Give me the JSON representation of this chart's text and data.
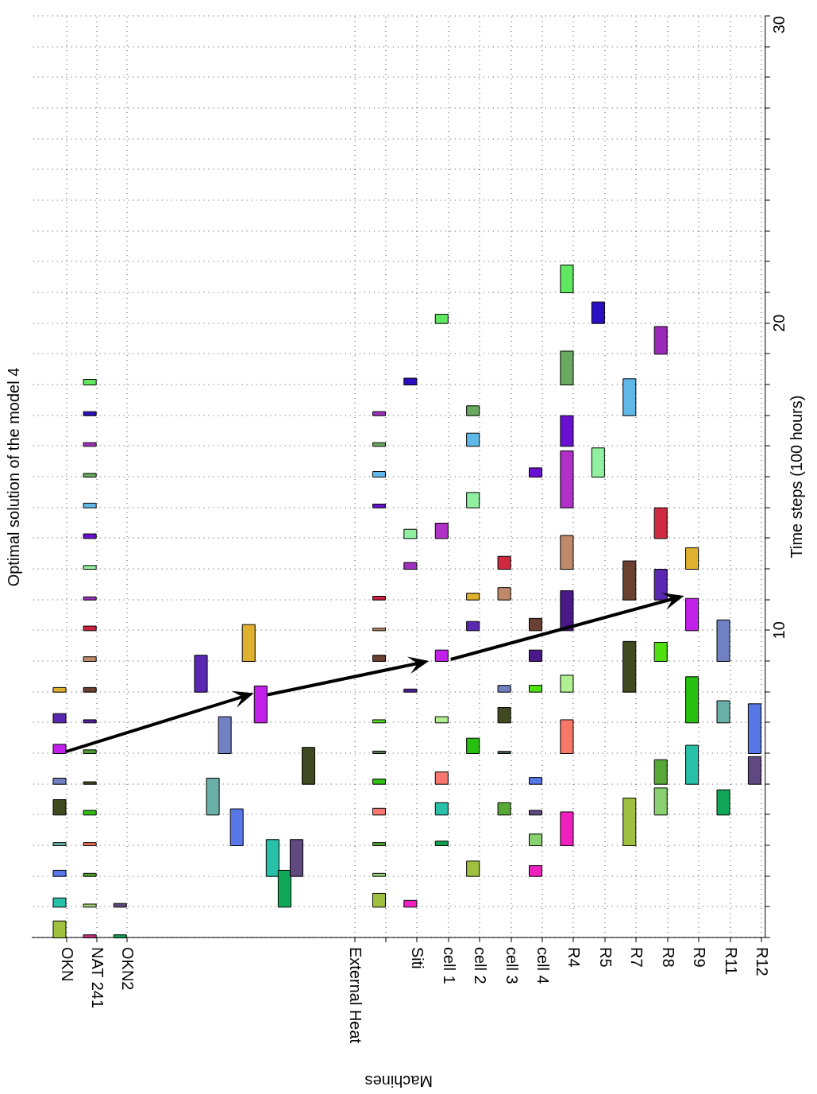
{
  "chart_data": [
    {
      "type": "bar",
      "title": "Optimal solution of the model 4",
      "categories": [
        "OKN",
        "NAT 241",
        "OKN2"
      ],
      "ylim": [
        0,
        30
      ],
      "grid": true,
      "tick_labels": "x",
      "series": [
        {
          "base": [
            0,
            0,
            0
          ],
          "values": [
            0.55,
            0.1,
            0.1
          ],
          "colors": [
            "#a0c040",
            "#c0307a",
            "#10a050"
          ]
        },
        {
          "base": [
            1,
            1,
            1
          ],
          "values": [
            0.3,
            0.1,
            0.12
          ],
          "colors": [
            "#28c0a8",
            "#a0d070",
            "#604880"
          ]
        },
        {
          "base": [
            2,
            2,
            null
          ],
          "values": [
            0.2,
            0.1,
            null
          ],
          "colors": [
            "#5878e8",
            "#50a030",
            null
          ]
        },
        {
          "base": [
            3,
            3,
            null
          ],
          "values": [
            0.1,
            0.1,
            null
          ],
          "colors": [
            "#6ab0a8",
            "#f07060",
            null
          ]
        },
        {
          "base": [
            4,
            4,
            null
          ],
          "values": [
            0.5,
            0.15,
            null
          ],
          "colors": [
            "#404a20",
            "#30c010",
            null
          ]
        },
        {
          "base": [
            5,
            5,
            null
          ],
          "values": [
            0.2,
            0.08,
            null
          ],
          "colors": [
            "#7080c0",
            "#405020",
            null
          ]
        },
        {
          "base": [
            6,
            6,
            null
          ],
          "values": [
            0.3,
            0.12,
            null
          ],
          "colors": [
            "#c020e8",
            "#50a030",
            null
          ]
        },
        {
          "base": [
            7,
            7,
            null
          ],
          "values": [
            0.3,
            0.1,
            null
          ],
          "colors": [
            "#5a28b0",
            "#5020a0",
            null
          ]
        },
        {
          "base": [
            8,
            8,
            null
          ],
          "values": [
            0.15,
            0.15,
            null
          ],
          "colors": [
            "#e0b030",
            "#6a4030",
            null
          ]
        },
        {
          "base": [
            null,
            9,
            null
          ],
          "values": [
            null,
            0.15,
            null
          ],
          "colors": [
            null,
            "#c08a6a",
            null
          ]
        },
        {
          "base": [
            null,
            10,
            null
          ],
          "values": [
            null,
            0.15,
            null
          ],
          "colors": [
            null,
            "#d02040",
            null
          ]
        },
        {
          "base": [
            null,
            11,
            null
          ],
          "values": [
            null,
            0.1,
            null
          ],
          "colors": [
            null,
            "#a030c0",
            null
          ]
        },
        {
          "base": [
            null,
            12,
            null
          ],
          "values": [
            null,
            0.12,
            null
          ],
          "colors": [
            null,
            "#90f0a0",
            null
          ]
        },
        {
          "base": [
            null,
            13,
            null
          ],
          "values": [
            null,
            0.15,
            null
          ],
          "colors": [
            null,
            "#6a10d0",
            null
          ]
        },
        {
          "base": [
            null,
            14,
            null
          ],
          "values": [
            null,
            0.15,
            null
          ],
          "colors": [
            null,
            "#60b8e8",
            null
          ]
        },
        {
          "base": [
            null,
            15,
            null
          ],
          "values": [
            null,
            0.12,
            null
          ],
          "colors": [
            null,
            "#6aaa60",
            null
          ]
        },
        {
          "base": [
            null,
            16,
            null
          ],
          "values": [
            null,
            0.12,
            null
          ],
          "colors": [
            null,
            "#a030c0",
            null
          ]
        },
        {
          "base": [
            null,
            17,
            null
          ],
          "values": [
            null,
            0.13,
            null
          ],
          "colors": [
            null,
            "#2a10c0",
            null
          ]
        },
        {
          "base": [
            null,
            18,
            null
          ],
          "values": [
            null,
            0.18,
            null
          ],
          "colors": [
            null,
            "#60e860",
            null
          ]
        }
      ]
    },
    {
      "type": "bar",
      "categories": [
        null,
        null,
        null,
        null,
        null,
        null,
        null,
        null,
        null,
        null
      ],
      "ylim": [
        0,
        30
      ],
      "grid": "y",
      "tick_labels": false,
      "base": [
        8,
        4,
        6,
        3,
        9,
        7,
        2,
        1,
        2,
        5
      ],
      "values": [
        1.2,
        1.2,
        1.2,
        1.2,
        1.2,
        1.2,
        1.2,
        1.2,
        1.2,
        1.2
      ],
      "colors": [
        "#5a28b0",
        "#6ab0a8",
        "#7080c0",
        "#5878e8",
        "#e0b030",
        "#c020e8",
        "#28c0a8",
        "#10a858",
        "#604880",
        "#404a20"
      ]
    },
    {
      "type": "bar",
      "categories": [
        "External Heat",
        null,
        "Siti",
        "cell 1",
        "cell 2",
        "cell 3",
        "cell 4",
        "R4",
        "R5",
        "R7",
        "R8",
        "R9",
        "R11",
        "R12"
      ],
      "xlabel": "Machines",
      "ylabel": "Time steps (100 hours)",
      "ylim": [
        0,
        30
      ],
      "grid": true,
      "yticks": [
        {
          "value": 0,
          "label": null
        },
        {
          "value": 1,
          "label": null
        },
        {
          "value": 2,
          "label": null
        },
        {
          "value": 3,
          "label": null
        },
        {
          "value": 4,
          "label": null
        },
        {
          "value": 5,
          "label": null
        },
        {
          "value": 6,
          "label": null
        },
        {
          "value": 7,
          "label": null
        },
        {
          "value": 8,
          "label": null
        },
        {
          "value": 9,
          "label": null
        },
        10,
        {
          "value": 11,
          "label": null
        },
        {
          "value": 12,
          "label": null
        },
        {
          "value": 13,
          "label": null
        },
        {
          "value": 14,
          "label": null
        },
        {
          "value": 15,
          "label": null
        },
        {
          "value": 16,
          "label": null
        },
        {
          "value": 17,
          "label": null
        },
        {
          "value": 18,
          "label": null
        },
        {
          "value": 19,
          "label": null
        },
        20,
        {
          "value": 21,
          "label": null
        },
        {
          "value": 22,
          "label": null
        },
        {
          "value": 23,
          "label": null
        },
        {
          "value": 24,
          "label": null
        },
        {
          "value": 25,
          "label": null
        },
        {
          "value": 26,
          "label": null
        },
        {
          "value": 27,
          "label": null
        },
        {
          "value": 28,
          "label": null
        },
        {
          "value": 29,
          "label": null
        },
        30
      ],
      "series": [
        {
          "base": [
            null,
            1,
            1,
            3,
            2,
            4,
            2,
            3,
            15,
            3,
            4,
            5,
            4,
            5
          ],
          "values": [
            null,
            0.45,
            0.22,
            0.15,
            0.5,
            0.4,
            0.35,
            1.1,
            0.95,
            1.55,
            0.88,
            1.27,
            0.82,
            0.9
          ],
          "colors": [
            null,
            "#a0c040",
            "#f020c0",
            "#10a050",
            "#a0c040",
            "#58a838",
            "#f020c0",
            "#f020c0",
            "#90f0a0",
            "#a0c040",
            "#88d070",
            "#28c0a8",
            "#10a858",
            "#604880"
          ]
        },
        {
          "base": [
            null,
            2,
            8,
            4,
            6,
            6,
            3,
            6,
            20,
            8,
            5,
            7,
            7,
            6
          ],
          "values": [
            null,
            0.1,
            0.1,
            0.4,
            0.5,
            0.07,
            0.38,
            1.1,
            0.7,
            1.65,
            0.8,
            1.5,
            0.72,
            1.62
          ],
          "colors": [
            null,
            "#90d070",
            "#5020a0",
            "#28c0a8",
            "#28c010",
            "#406060",
            "#88d070",
            "#f87868",
            "#2a10c0",
            "#404a20",
            "#58a838",
            "#28c010",
            "#6ab0a8",
            "#5878e8"
          ]
        },
        {
          "base": [
            null,
            3,
            12,
            5,
            10,
            7,
            4,
            8,
            null,
            11,
            9,
            10,
            9,
            null
          ],
          "values": [
            null,
            0.1,
            0.22,
            0.4,
            0.3,
            0.5,
            0.15,
            0.55,
            null,
            1.27,
            0.62,
            1.05,
            1.35,
            null
          ],
          "colors": [
            null,
            "#50a030",
            "#a030c0",
            "#f87870",
            "#5a28b0",
            "#404a20",
            "#604880",
            "#b0f090",
            null,
            "#6a4030",
            "#50e010",
            "#c020e8",
            "#7080c0",
            null
          ]
        },
        {
          "base": [
            null,
            4,
            13,
            7,
            11,
            8,
            5,
            10,
            null,
            17,
            11,
            12,
            null,
            null
          ],
          "values": [
            null,
            0.22,
            0.3,
            0.2,
            0.22,
            0.22,
            0.22,
            1.3,
            null,
            1.2,
            1.0,
            0.7,
            null,
            null
          ],
          "colors": [
            null,
            "#f87870",
            "#90f0a0",
            "#b0f090",
            "#e0b030",
            "#7080c0",
            "#5878e8",
            "#4a1888",
            null,
            "#60b8e8",
            "#5a28b0",
            "#e0b030",
            null,
            null
          ]
        },
        {
          "base": [
            null,
            5,
            18,
            9,
            14,
            11,
            8,
            12,
            null,
            null,
            13,
            null,
            null,
            null
          ],
          "values": [
            null,
            0.17,
            0.22,
            0.37,
            0.5,
            0.4,
            0.22,
            1.1,
            null,
            null,
            1.0,
            null,
            null,
            null
          ],
          "colors": [
            null,
            "#30c010",
            "#2a10c0",
            "#c020e8",
            "#90f0a0",
            "#c08a6a",
            "#50e010",
            "#c08a6a",
            null,
            null,
            "#d02a40",
            null,
            null,
            null
          ]
        },
        {
          "base": [
            null,
            6,
            null,
            13,
            16,
            12,
            9,
            14,
            null,
            null,
            19,
            null,
            null,
            null
          ],
          "values": [
            null,
            0.08,
            null,
            0.5,
            0.43,
            0.42,
            0.37,
            1.85,
            null,
            null,
            0.9,
            null,
            null,
            null
          ],
          "colors": [
            null,
            "#5a7a50",
            null,
            "#b030c8",
            "#60b8e8",
            "#d02a40",
            "#4a1888",
            "#b030c8",
            null,
            null,
            "#9a28b8",
            null,
            null,
            null
          ]
        },
        {
          "base": [
            null,
            7,
            null,
            20,
            17,
            null,
            10,
            16,
            null,
            null,
            null,
            null,
            null,
            null
          ],
          "values": [
            null,
            0.1,
            null,
            0.3,
            0.32,
            null,
            0.4,
            1.0,
            null,
            null,
            null,
            null,
            null,
            null
          ],
          "colors": [
            null,
            "#50e020",
            null,
            "#60e860",
            "#6aaa60",
            null,
            "#6a4030",
            "#6a10d0",
            null,
            null,
            null,
            null,
            null,
            null
          ]
        },
        {
          "base": [
            null,
            9,
            null,
            null,
            null,
            null,
            15,
            18,
            null,
            null,
            null,
            null,
            null,
            null
          ],
          "values": [
            null,
            0.2,
            null,
            null,
            null,
            null,
            0.3,
            1.1,
            null,
            null,
            null,
            null,
            null,
            null
          ],
          "colors": [
            null,
            "#6a4030",
            null,
            null,
            null,
            null,
            "#6a10d0",
            "#6aaa60",
            null,
            null,
            null,
            null,
            null,
            null
          ]
        },
        {
          "base": [
            null,
            10,
            null,
            null,
            null,
            null,
            null,
            21,
            null,
            null,
            null,
            null,
            null,
            null
          ],
          "values": [
            null,
            0.08,
            null,
            null,
            null,
            null,
            null,
            0.9,
            null,
            null,
            null,
            null,
            null,
            null
          ],
          "colors": [
            null,
            "#c08a6a",
            null,
            null,
            null,
            null,
            null,
            "#60e860",
            null,
            null,
            null,
            null,
            null,
            null
          ]
        },
        {
          "base": [
            null,
            11,
            null,
            null,
            null,
            null,
            null,
            null,
            null,
            null,
            null,
            null,
            null,
            null
          ],
          "values": [
            null,
            0.12,
            null,
            null,
            null,
            null,
            null,
            null,
            null,
            null,
            null,
            null,
            null,
            null
          ],
          "colors": [
            null,
            "#d02040",
            null,
            null,
            null,
            null,
            null,
            null,
            null,
            null,
            null,
            null,
            null,
            null
          ]
        },
        {
          "base": [
            null,
            14,
            null,
            null,
            null,
            null,
            null,
            null,
            null,
            null,
            null,
            null,
            null,
            null
          ],
          "values": [
            null,
            0.12,
            null,
            null,
            null,
            null,
            null,
            null,
            null,
            null,
            null,
            null,
            null,
            null
          ],
          "colors": [
            null,
            "#6a10d0",
            null,
            null,
            null,
            null,
            null,
            null,
            null,
            null,
            null,
            null,
            null,
            null
          ]
        },
        {
          "base": [
            null,
            15,
            null,
            null,
            null,
            null,
            null,
            null,
            null,
            null,
            null,
            null,
            null,
            null
          ],
          "values": [
            null,
            0.18,
            null,
            null,
            null,
            null,
            null,
            null,
            null,
            null,
            null,
            null,
            null,
            null
          ],
          "colors": [
            null,
            "#60b8e8",
            null,
            null,
            null,
            null,
            null,
            null,
            null,
            null,
            null,
            null,
            null,
            null
          ]
        },
        {
          "base": [
            null,
            16,
            null,
            null,
            null,
            null,
            null,
            null,
            null,
            null,
            null,
            null,
            null,
            null
          ],
          "values": [
            null,
            0.12,
            null,
            null,
            null,
            null,
            null,
            null,
            null,
            null,
            null,
            null,
            null,
            null
          ],
          "colors": [
            null,
            "#6aaa60",
            null,
            null,
            null,
            null,
            null,
            null,
            null,
            null,
            null,
            null,
            null,
            null
          ]
        },
        {
          "base": [
            null,
            17,
            null,
            null,
            null,
            null,
            null,
            null,
            null,
            null,
            null,
            null,
            null,
            null
          ],
          "values": [
            null,
            0.13,
            null,
            null,
            null,
            null,
            null,
            null,
            null,
            null,
            null,
            null,
            null,
            null
          ],
          "colors": [
            null,
            "#a030c0",
            null,
            null,
            null,
            null,
            null,
            null,
            null,
            null,
            null,
            null,
            null,
            null
          ]
        }
      ]
    }
  ]
}
